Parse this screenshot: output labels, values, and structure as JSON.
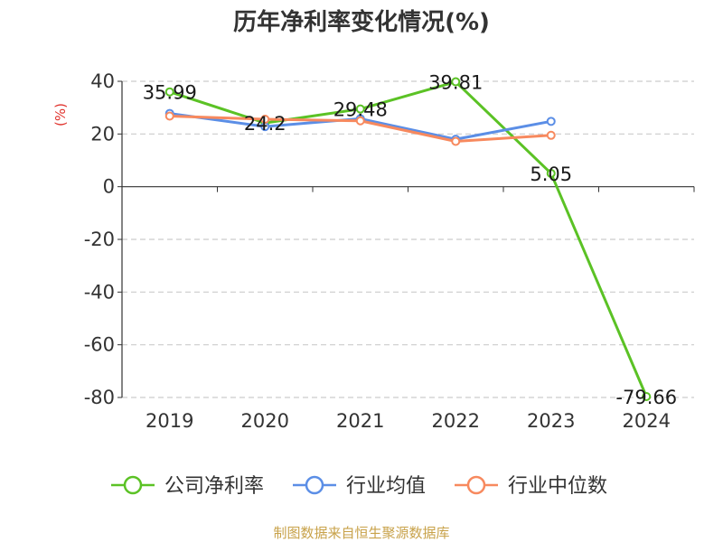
{
  "chart_data": {
    "type": "line",
    "title": "历年净利率变化情况(%)",
    "ylabel": "(%)",
    "categories": [
      "2019",
      "2020",
      "2021",
      "2022",
      "2023",
      "2024"
    ],
    "ylim": [
      -80,
      40
    ],
    "yticks": [
      40,
      20,
      0,
      -20,
      -40,
      -60,
      -80
    ],
    "grid": true,
    "legend_position": "bottom",
    "series": [
      {
        "name": "公司净利率",
        "color": "#5bc225",
        "values": [
          35.99,
          24.2,
          29.48,
          39.81,
          5.05,
          -79.66
        ],
        "labels": [
          "35.99",
          "24.2",
          "29.48",
          "39.81",
          "5.05",
          "-79.66"
        ]
      },
      {
        "name": "行业均值",
        "color": "#5b8ee6",
        "values": [
          27.8,
          22.8,
          25.8,
          18.0,
          24.8,
          null
        ]
      },
      {
        "name": "行业中位数",
        "color": "#f7895e",
        "values": [
          26.8,
          25.6,
          25.0,
          17.2,
          19.5,
          null
        ]
      }
    ]
  },
  "source": "制图数据来自恒生聚源数据库"
}
